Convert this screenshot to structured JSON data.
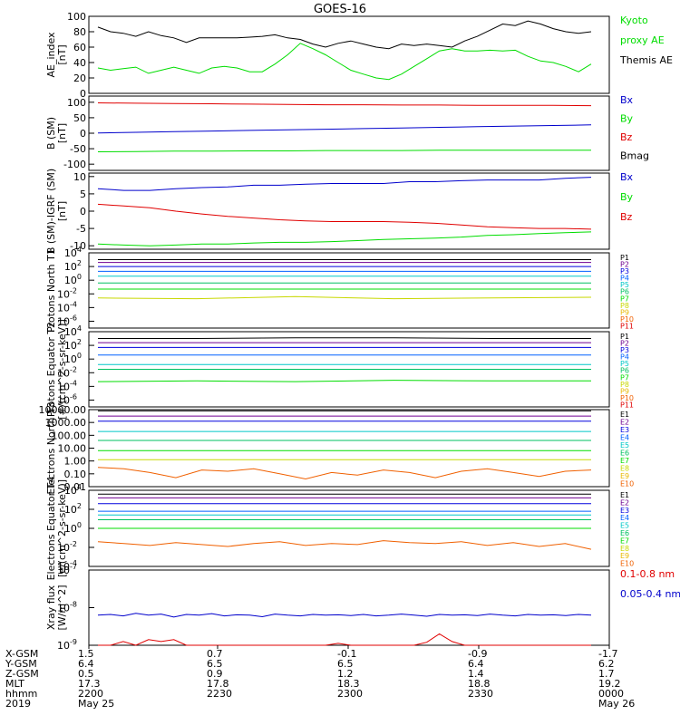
{
  "title": "GOES-16",
  "colors": {
    "black": "#000000",
    "red": "#e00000",
    "green": "#00dd00",
    "blue": "#0000cc",
    "P": [
      "#000000",
      "#700090",
      "#0000dd",
      "#0060ff",
      "#00c8c8",
      "#00c060",
      "#00dd00",
      "#c8d800",
      "#e8b800",
      "#f06000",
      "#e00000"
    ],
    "E": [
      "#000000",
      "#700090",
      "#0000dd",
      "#0060ff",
      "#00c8c8",
      "#00c060",
      "#00dd00",
      "#c8d800",
      "#e8b800",
      "#f06000",
      "#e00000"
    ]
  },
  "chart_data": [
    {
      "type": "line",
      "ylabel": "AE_index [nT]",
      "ylim": [
        0,
        100
      ],
      "yticks": [
        "0",
        "20",
        "40",
        "60",
        "80",
        "100"
      ],
      "legend": [
        {
          "text": "Kyoto",
          "color": "green"
        },
        {
          "text": "proxy AE",
          "color": "green"
        },
        {
          "text": "Themis AE",
          "color": "black"
        }
      ],
      "series": [
        {
          "color": "black",
          "values": [
            86,
            80,
            78,
            74,
            80,
            75,
            72,
            66,
            72,
            72,
            72,
            72,
            73,
            74,
            76,
            72,
            70,
            64,
            60,
            65,
            68,
            64,
            60,
            58,
            64,
            62,
            64,
            62,
            60,
            68,
            74,
            82,
            90,
            88,
            94,
            90,
            84,
            80,
            78,
            80
          ]
        },
        {
          "color": "green",
          "values": [
            33,
            30,
            32,
            34,
            26,
            30,
            34,
            30,
            26,
            33,
            35,
            33,
            28,
            28,
            38,
            50,
            65,
            58,
            50,
            40,
            30,
            25,
            20,
            18,
            25,
            35,
            45,
            55,
            58,
            55,
            55,
            56,
            55,
            56,
            48,
            42,
            40,
            35,
            28,
            38
          ]
        }
      ]
    },
    {
      "type": "line",
      "ylabel": "B (SM) [nT]",
      "ylim": [
        -120,
        120
      ],
      "yticks": [
        "-100",
        "-50",
        "0",
        "50",
        "100"
      ],
      "legend": [
        {
          "text": "Bx",
          "color": "blue"
        },
        {
          "text": "By",
          "color": "green"
        },
        {
          "text": "Bz",
          "color": "red"
        },
        {
          "text": "Bmag",
          "color": "black"
        }
      ],
      "series": [
        {
          "color": "blue",
          "values": [
            1,
            3,
            5,
            7,
            9,
            11,
            13,
            15,
            17,
            19,
            21,
            23,
            25,
            27
          ]
        },
        {
          "color": "green",
          "values": [
            -60,
            -59,
            -58,
            -58,
            -57,
            -57,
            -56,
            -56,
            -56,
            -55,
            -55,
            -55,
            -55,
            -55
          ]
        },
        {
          "color": "red",
          "values": [
            98,
            97,
            96,
            95,
            94,
            93,
            92,
            92,
            91,
            91,
            90,
            90,
            90,
            89
          ]
        }
      ]
    },
    {
      "type": "line",
      "ylabel": "B (SM)-IGRF (SM) [nT]",
      "ylim": [
        -11,
        11
      ],
      "yticks": [
        "-10",
        "-5",
        "0",
        "5",
        "10"
      ],
      "legend": [
        {
          "text": "Bx",
          "color": "blue"
        },
        {
          "text": "By",
          "color": "green"
        },
        {
          "text": "Bz",
          "color": "red"
        }
      ],
      "series": [
        {
          "color": "blue",
          "values": [
            6.5,
            6,
            6,
            6.5,
            6.8,
            7,
            7.5,
            7.5,
            7.8,
            8,
            8,
            8,
            8.5,
            8.5,
            8.8,
            9,
            9,
            9,
            9.5,
            9.8
          ]
        },
        {
          "color": "red",
          "values": [
            2,
            1.5,
            1,
            0,
            -0.8,
            -1.5,
            -2,
            -2.5,
            -2.8,
            -3,
            -3,
            -3,
            -3.2,
            -3.5,
            -4,
            -4.5,
            -4.8,
            -5,
            -5,
            -5.2
          ]
        },
        {
          "color": "green",
          "values": [
            -9.5,
            -9.8,
            -10,
            -9.8,
            -9.5,
            -9.5,
            -9.2,
            -9,
            -9,
            -8.8,
            -8.5,
            -8.2,
            -8,
            -7.8,
            -7.5,
            -7,
            -6.8,
            -6.5,
            -6.2,
            -6
          ]
        }
      ]
    },
    {
      "type": "line",
      "ylabel": "Protons North T1",
      "log": true,
      "ylim": [
        -7,
        4
      ],
      "yticks": [
        "10^4",
        "10^2",
        "10^0",
        "10^-2",
        "10^-4",
        "10^-6"
      ],
      "legend": [
        {
          "text": "P1",
          "ci": 0
        },
        {
          "text": "P2",
          "ci": 1
        },
        {
          "text": "P3",
          "ci": 2
        },
        {
          "text": "P4",
          "ci": 3
        },
        {
          "text": "P5",
          "ci": 4
        },
        {
          "text": "P6",
          "ci": 5
        },
        {
          "text": "P7",
          "ci": 6
        },
        {
          "text": "P8",
          "ci": 7
        },
        {
          "text": "P9",
          "ci": 8
        },
        {
          "text": "P10",
          "ci": 9
        },
        {
          "text": "P11",
          "ci": 10
        }
      ],
      "series": [
        {
          "ci": 0,
          "values": [
            3.0,
            3.0,
            3.0,
            3.0,
            3.0,
            3.0
          ]
        },
        {
          "ci": 1,
          "values": [
            2.6,
            2.6,
            2.6,
            2.6,
            2.6,
            2.6
          ]
        },
        {
          "ci": 2,
          "values": [
            2.0,
            2.0,
            2.0,
            2.0,
            2.0,
            2.0
          ]
        },
        {
          "ci": 3,
          "values": [
            1.3,
            1.3,
            1.3,
            1.3,
            1.3,
            1.3
          ]
        },
        {
          "ci": 4,
          "values": [
            0.6,
            0.6,
            0.6,
            0.6,
            0.6,
            0.6
          ]
        },
        {
          "ci": 5,
          "values": [
            -0.4,
            -0.4,
            -0.4,
            -0.4,
            -0.4,
            -0.4
          ]
        },
        {
          "ci": 6,
          "values": [
            -1.3,
            -1.3,
            -1.3,
            -1.3,
            -1.3,
            -1.3
          ]
        },
        {
          "ci": 7,
          "values": [
            -2.6,
            -2.7,
            -2.4,
            -2.7,
            -2.6,
            -2.5
          ]
        }
      ]
    },
    {
      "type": "line",
      "ylabel": "Protons Equator T2 [#/(cm^2-s-sr-keV)]",
      "log": true,
      "ylim": [
        -7,
        4
      ],
      "yticks": [
        "10^4",
        "10^2",
        "10^0",
        "10^-2",
        "10^-4",
        "10^-6"
      ],
      "legend": [
        {
          "text": "P1",
          "ci": 0
        },
        {
          "text": "P2",
          "ci": 1
        },
        {
          "text": "P3",
          "ci": 2
        },
        {
          "text": "P4",
          "ci": 3
        },
        {
          "text": "P5",
          "ci": 4
        },
        {
          "text": "P6",
          "ci": 5
        },
        {
          "text": "P7",
          "ci": 6
        },
        {
          "text": "P8",
          "ci": 7
        },
        {
          "text": "P9",
          "ci": 8
        },
        {
          "text": "P10",
          "ci": 9
        },
        {
          "text": "P11",
          "ci": 10
        }
      ],
      "series": [
        {
          "ci": 0,
          "values": [
            3.0,
            3.0,
            3.1,
            3.1,
            3.0,
            3.0
          ]
        },
        {
          "ci": 1,
          "values": [
            2.4,
            2.4,
            2.4,
            2.4,
            2.4,
            2.4
          ]
        },
        {
          "ci": 2,
          "values": [
            1.7,
            1.7,
            1.7,
            1.7,
            1.7,
            1.7
          ]
        },
        {
          "ci": 3,
          "values": [
            0.6,
            0.6,
            0.6,
            0.6,
            0.6,
            0.6
          ]
        },
        {
          "ci": 4,
          "values": [
            -0.8,
            -0.8,
            -0.8,
            -0.8,
            -0.8,
            -0.8
          ]
        },
        {
          "ci": 5,
          "values": [
            -1.5,
            -1.5,
            -1.5,
            -1.5,
            -1.5,
            -1.5
          ]
        },
        {
          "ci": 6,
          "values": [
            -3.3,
            -3.2,
            -3.3,
            -3.1,
            -3.2,
            -3.2
          ]
        }
      ]
    },
    {
      "type": "line",
      "ylabel": "Electrons North T3",
      "log": true,
      "ylim": [
        -2,
        4
      ],
      "yticks": [
        "10000.00",
        "1000.00",
        "100.00",
        "10.00",
        "1.00",
        "0.10",
        "0.01"
      ],
      "legend": [
        {
          "text": "E1",
          "ci": 0
        },
        {
          "text": "E2",
          "ci": 1
        },
        {
          "text": "E3",
          "ci": 2
        },
        {
          "text": "E4",
          "ci": 3
        },
        {
          "text": "E5",
          "ci": 4
        },
        {
          "text": "E6",
          "ci": 5
        },
        {
          "text": "E7",
          "ci": 6
        },
        {
          "text": "E8",
          "ci": 7
        },
        {
          "text": "E9",
          "ci": 8
        },
        {
          "text": "E10",
          "ci": 9
        }
      ],
      "series": [
        {
          "ci": 0,
          "values": [
            3.9,
            3.9,
            3.9,
            3.9,
            3.9,
            3.9
          ]
        },
        {
          "ci": 1,
          "values": [
            3.5,
            3.5,
            3.5,
            3.5,
            3.5,
            3.5
          ]
        },
        {
          "ci": 2,
          "values": [
            3.1,
            3.1,
            3.1,
            3.1,
            3.1,
            3.1
          ]
        },
        {
          "ci": 4,
          "values": [
            2.3,
            2.3,
            2.3,
            2.3,
            2.3,
            2.3
          ]
        },
        {
          "ci": 5,
          "values": [
            1.6,
            1.6,
            1.6,
            1.6,
            1.6,
            1.6
          ]
        },
        {
          "ci": 6,
          "values": [
            0.8,
            0.8,
            0.8,
            0.8,
            0.8,
            0.8
          ]
        },
        {
          "ci": 7,
          "values": [
            0.1,
            0.1,
            0.1,
            0.1,
            0.1,
            0.1
          ]
        },
        {
          "ci": 9,
          "values": [
            -0.5,
            -0.6,
            -0.9,
            -1.3,
            -0.7,
            -0.8,
            -0.6,
            -1.0,
            -1.4,
            -0.9,
            -1.1,
            -0.7,
            -0.9,
            -1.3,
            -0.8,
            -0.6,
            -0.9,
            -1.2,
            -0.8,
            -0.7
          ]
        }
      ]
    },
    {
      "type": "line",
      "ylabel": "Electrons Equator T4 [e/(cm^2-s-sr-keV)]",
      "log": true,
      "ylim": [
        -4,
        4
      ],
      "yticks": [
        "10^4",
        "10^2",
        "10^0",
        "10^-2",
        "10^-4"
      ],
      "legend": [
        {
          "text": "E1",
          "ci": 0
        },
        {
          "text": "E2",
          "ci": 1
        },
        {
          "text": "E3",
          "ci": 2
        },
        {
          "text": "E4",
          "ci": 3
        },
        {
          "text": "E5",
          "ci": 4
        },
        {
          "text": "E6",
          "ci": 5
        },
        {
          "text": "E7",
          "ci": 6
        },
        {
          "text": "E8",
          "ci": 7
        },
        {
          "text": "E9",
          "ci": 8
        },
        {
          "text": "E10",
          "ci": 9
        }
      ],
      "series": [
        {
          "ci": 0,
          "values": [
            3.6,
            3.6,
            3.6,
            3.6,
            3.6,
            3.6
          ]
        },
        {
          "ci": 1,
          "values": [
            3.2,
            3.2,
            3.2,
            3.2,
            3.2,
            3.2
          ]
        },
        {
          "ci": 2,
          "values": [
            2.6,
            2.6,
            2.6,
            2.6,
            2.6,
            2.6
          ]
        },
        {
          "ci": 3,
          "values": [
            1.8,
            1.8,
            1.8,
            1.8,
            1.8,
            1.8
          ]
        },
        {
          "ci": 4,
          "values": [
            1.4,
            1.4,
            1.4,
            1.4,
            1.4,
            1.4
          ]
        },
        {
          "ci": 5,
          "values": [
            0.9,
            0.9,
            0.9,
            0.9,
            0.9,
            0.9
          ]
        },
        {
          "ci": 6,
          "values": [
            0.0,
            0.0,
            0.0,
            0.0,
            0.0,
            0.0
          ]
        },
        {
          "ci": 9,
          "values": [
            -1.4,
            -1.6,
            -1.8,
            -1.5,
            -1.7,
            -1.9,
            -1.6,
            -1.4,
            -1.8,
            -1.6,
            -1.7,
            -1.3,
            -1.5,
            -1.6,
            -1.4,
            -1.8,
            -1.5,
            -1.9,
            -1.6,
            -2.2
          ]
        }
      ]
    },
    {
      "type": "line",
      "ylabel": "Xray flux [W/m^2]",
      "log": true,
      "ylim": [
        -9,
        -7
      ],
      "yticks": [
        "10^-7",
        "10^-8",
        "10^-9"
      ],
      "legend": [
        {
          "text": "0.1-0.8 nm",
          "color": "red"
        },
        {
          "text": "0.05-0.4 nm",
          "color": "blue"
        }
      ],
      "series": [
        {
          "color": "blue",
          "values": [
            -8.2,
            -8.18,
            -8.22,
            -8.15,
            -8.2,
            -8.17,
            -8.25,
            -8.18,
            -8.2,
            -8.16,
            -8.22,
            -8.19,
            -8.2,
            -8.24,
            -8.17,
            -8.2,
            -8.22,
            -8.18,
            -8.2,
            -8.19,
            -8.21,
            -8.18,
            -8.22,
            -8.2,
            -8.17,
            -8.2,
            -8.23,
            -8.18,
            -8.2,
            -8.19,
            -8.21,
            -8.17,
            -8.2,
            -8.22,
            -8.18,
            -8.2,
            -8.19,
            -8.21,
            -8.18,
            -8.2
          ]
        },
        {
          "color": "red",
          "values": [
            -9.0,
            -9.0,
            -8.9,
            -9.0,
            -8.85,
            -8.9,
            -8.85,
            -9.0,
            -9.0,
            -9.0,
            -9.0,
            -9.0,
            -9.0,
            -9.0,
            -9.0,
            -9.0,
            -9.0,
            -9.0,
            -9.0,
            -8.95,
            -9.0,
            -9.0,
            -9.0,
            -9.0,
            -9.0,
            -9.0,
            -8.92,
            -8.7,
            -8.9,
            -9.0,
            -9.0,
            -9.0,
            -9.0,
            -9.0,
            -9.0,
            -9.0,
            -9.0,
            -9.0,
            -9.0,
            -9.0
          ]
        }
      ]
    }
  ],
  "xaxis": {
    "rows": [
      {
        "label": "X-GSM",
        "values": [
          "1.5",
          "0.7",
          "-0.1",
          "-0.9",
          "-1.7"
        ]
      },
      {
        "label": "Y-GSM",
        "values": [
          "6.4",
          "6.5",
          "6.5",
          "6.4",
          "6.2"
        ]
      },
      {
        "label": "Z-GSM",
        "values": [
          "0.5",
          "0.9",
          "1.2",
          "1.4",
          "1.7"
        ]
      },
      {
        "label": "MLT",
        "values": [
          "17.3",
          "17.8",
          "18.3",
          "18.8",
          "19.2"
        ]
      },
      {
        "label": "hhmm",
        "values": [
          "2200",
          "2230",
          "2300",
          "2330",
          "0000"
        ]
      },
      {
        "label": "2019",
        "values": [
          "May 25",
          "",
          "",
          "",
          "May 26"
        ]
      }
    ]
  }
}
